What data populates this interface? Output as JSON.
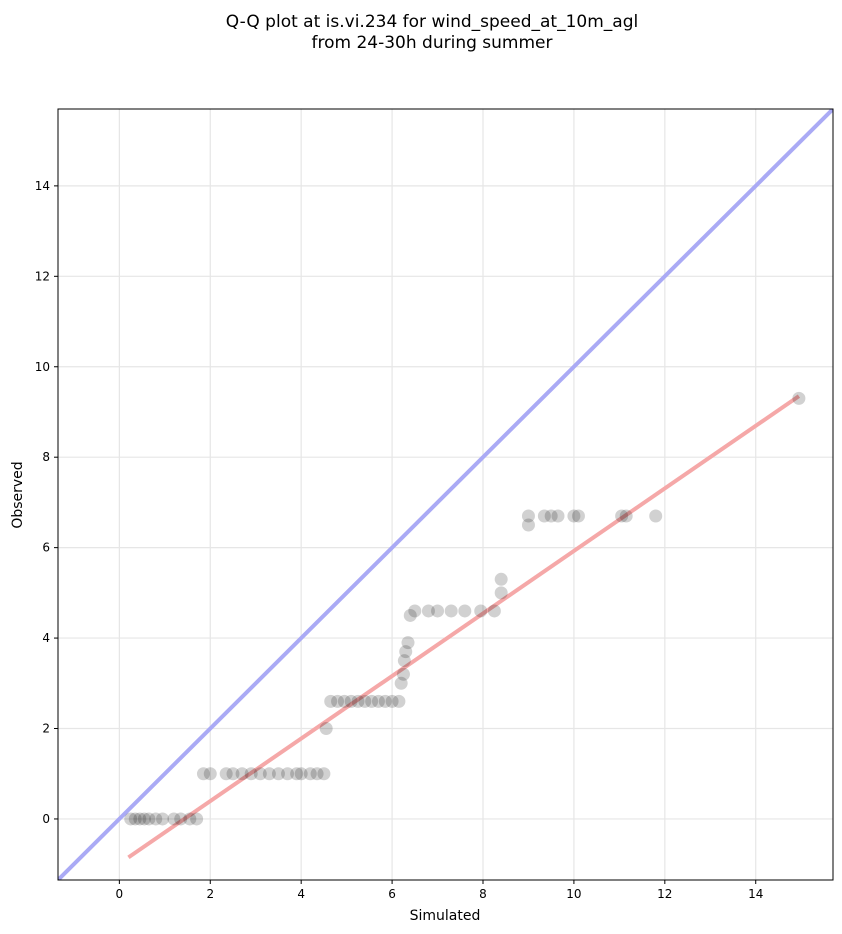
{
  "chart_data": {
    "type": "scatter",
    "title_lines": [
      "Q-Q plot at is.vi.234 for wind_speed_at_10m_agl",
      "from 24-30h during summer"
    ],
    "xlabel": "Simulated",
    "ylabel": "Observed",
    "xlim": [
      -1.35,
      15.7
    ],
    "ylim": [
      -1.35,
      15.7
    ],
    "xticks": [
      0,
      2,
      4,
      6,
      8,
      10,
      12,
      14
    ],
    "yticks": [
      0,
      2,
      4,
      6,
      8,
      10,
      12,
      14
    ],
    "grid": true,
    "colors": {
      "points": "#000000",
      "identity_line": "#aaaaf5",
      "fit_line": "#f5a8a8"
    },
    "identity_line": {
      "x": [
        -1.35,
        15.7
      ],
      "y": [
        -1.35,
        15.7
      ]
    },
    "fit_line": {
      "x": [
        0.2,
        14.95
      ],
      "y": [
        -0.85,
        9.35
      ]
    },
    "points": [
      {
        "x": 0.25,
        "y": 0
      },
      {
        "x": 0.35,
        "y": 0
      },
      {
        "x": 0.45,
        "y": 0
      },
      {
        "x": 0.55,
        "y": 0
      },
      {
        "x": 0.65,
        "y": 0
      },
      {
        "x": 0.8,
        "y": 0
      },
      {
        "x": 0.95,
        "y": 0
      },
      {
        "x": 1.2,
        "y": 0
      },
      {
        "x": 1.35,
        "y": 0
      },
      {
        "x": 1.55,
        "y": 0
      },
      {
        "x": 1.7,
        "y": 0
      },
      {
        "x": 1.85,
        "y": 1
      },
      {
        "x": 2.0,
        "y": 1
      },
      {
        "x": 2.35,
        "y": 1
      },
      {
        "x": 2.5,
        "y": 1
      },
      {
        "x": 2.7,
        "y": 1
      },
      {
        "x": 2.9,
        "y": 1
      },
      {
        "x": 3.1,
        "y": 1
      },
      {
        "x": 3.3,
        "y": 1
      },
      {
        "x": 3.5,
        "y": 1
      },
      {
        "x": 3.7,
        "y": 1
      },
      {
        "x": 3.9,
        "y": 1
      },
      {
        "x": 4.0,
        "y": 1
      },
      {
        "x": 4.2,
        "y": 1
      },
      {
        "x": 4.35,
        "y": 1
      },
      {
        "x": 4.5,
        "y": 1
      },
      {
        "x": 4.55,
        "y": 2.0
      },
      {
        "x": 4.65,
        "y": 2.6
      },
      {
        "x": 4.8,
        "y": 2.6
      },
      {
        "x": 4.95,
        "y": 2.6
      },
      {
        "x": 5.1,
        "y": 2.6
      },
      {
        "x": 5.25,
        "y": 2.6
      },
      {
        "x": 5.4,
        "y": 2.6
      },
      {
        "x": 5.55,
        "y": 2.6
      },
      {
        "x": 5.7,
        "y": 2.6
      },
      {
        "x": 5.85,
        "y": 2.6
      },
      {
        "x": 6.0,
        "y": 2.6
      },
      {
        "x": 6.15,
        "y": 2.6
      },
      {
        "x": 6.2,
        "y": 3.0
      },
      {
        "x": 6.25,
        "y": 3.2
      },
      {
        "x": 6.27,
        "y": 3.5
      },
      {
        "x": 6.3,
        "y": 3.7
      },
      {
        "x": 6.35,
        "y": 3.9
      },
      {
        "x": 6.4,
        "y": 4.5
      },
      {
        "x": 6.5,
        "y": 4.6
      },
      {
        "x": 6.8,
        "y": 4.6
      },
      {
        "x": 7.0,
        "y": 4.6
      },
      {
        "x": 7.3,
        "y": 4.6
      },
      {
        "x": 7.6,
        "y": 4.6
      },
      {
        "x": 7.95,
        "y": 4.6
      },
      {
        "x": 8.25,
        "y": 4.6
      },
      {
        "x": 8.4,
        "y": 5.0
      },
      {
        "x": 8.4,
        "y": 5.3
      },
      {
        "x": 9.0,
        "y": 6.5
      },
      {
        "x": 9.0,
        "y": 6.7
      },
      {
        "x": 9.35,
        "y": 6.7
      },
      {
        "x": 9.5,
        "y": 6.7
      },
      {
        "x": 9.65,
        "y": 6.7
      },
      {
        "x": 10.0,
        "y": 6.7
      },
      {
        "x": 10.1,
        "y": 6.7
      },
      {
        "x": 11.05,
        "y": 6.7
      },
      {
        "x": 11.15,
        "y": 6.7
      },
      {
        "x": 11.8,
        "y": 6.7
      },
      {
        "x": 14.95,
        "y": 9.3
      }
    ]
  }
}
